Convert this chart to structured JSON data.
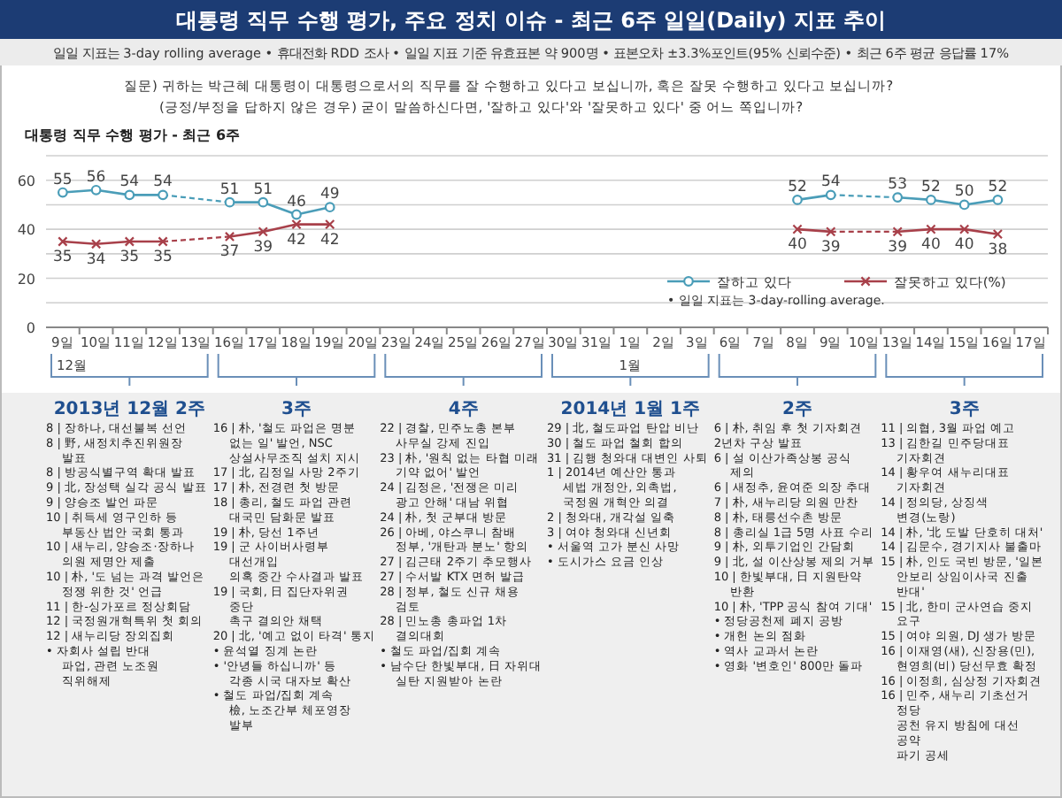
{
  "chart_data": {
    "type": "line",
    "title": "대통령 직무 수행 평가, 주요 정치 이슈 - 최근 6주 일일(Daily) 지표 추이",
    "subtitle": "일일 지표는 3-day rolling average • 휴대전화 RDD 조사 • 일일 지표 기준 유효표본 약 900명 • 표본오차 ±3.3%포인트(95% 신뢰수준) • 최근 6주 평균 응답률 17%",
    "categories": [
      "9일",
      "10일",
      "11일",
      "12일",
      "13일",
      "16일",
      "17일",
      "18일",
      "19일",
      "20일",
      "23일",
      "24일",
      "25일",
      "26일",
      "27일",
      "30일",
      "31일",
      "1일",
      "2일",
      "3일",
      "6일",
      "7일",
      "8일",
      "9일",
      "10일",
      "13일",
      "14일",
      "15일",
      "16일",
      "17일"
    ],
    "series": [
      {
        "name": "잘하고 있다",
        "color": "#4a9db8",
        "marker": "circle",
        "values": [
          55,
          56,
          54,
          54,
          null,
          51,
          51,
          46,
          49,
          null,
          null,
          null,
          null,
          null,
          null,
          null,
          null,
          null,
          null,
          null,
          null,
          null,
          52,
          54,
          null,
          53,
          52,
          50,
          52,
          null
        ]
      },
      {
        "name": "잘못하고 있다(%)",
        "color": "#a8404a",
        "marker": "cross",
        "values": [
          35,
          34,
          35,
          35,
          null,
          37,
          39,
          42,
          42,
          null,
          null,
          null,
          null,
          null,
          null,
          null,
          null,
          null,
          null,
          null,
          null,
          null,
          40,
          39,
          null,
          39,
          40,
          40,
          38,
          null
        ]
      }
    ],
    "ylim": [
      0,
      70
    ],
    "yticks": [
      0,
      {
        "value": 10,
        "label": null
      },
      20,
      {
        "value": 30,
        "label": null
      },
      40,
      {
        "value": 50,
        "label": null
      },
      60,
      {
        "value": 70,
        "label": null
      }
    ],
    "grid": "y",
    "legend": "bottom right",
    "data_labels": true,
    "line_style": "solid",
    "annotations": [
      "대통령 직무 수행 평가 - 최근 6주",
      "질문) 귀하는 박근혜 대통령이 대통령으로서의 직무를 잘 수행하고 있다고 보십니까, 혹은 잘못 수행하고 있다고 보십니까?",
      "(긍정/부정을 답하지 않은 경우) 굳이 말씀하신다면, '잘하고 있다'와 '잘못하고 있다' 중 어느 쪽입니까?",
      "• 일일 지표는 3-day-rolling average.",
      "12월",
      "1월",
      "2013년 12월 2주\n8 | 장하나, 대선불복 선언\n8 | 野, 새정치추진위원장 발표\n8 | 방공식별구역 확대 발표\n9 | 北, 장성택 실각 공식 발표\n9 | 양승조 발언 파문\n10 | 취득세 영구인하 등\n부동산 법안 국회 통과\n10 | 새누리, 양승조·장하나\n의원 제명안 제출\n10 | 朴, '도 넘는 과격 발언은\n정쟁 위한 것' 언급\n11 | 한-싱가포르 정상회담\n12 | 국정원개혁특위 첫 회의\n12 | 새누리당 장외집회\n• 자회사 설립 반대\n파업, 관련 노조원 직위해제",
      "3주\n16 | 朴, '철도 파업은 명분\n없는 일' 발언, NSC\n상설사무조직 설치 지시\n17 | 北, 김정일 사망 2주기\n17 | 朴, 전경련 첫 방문\n18 | 총리, 철도 파업 관련\n대국민 담화문 발표\n19 | 朴, 당선 1주년\n19 | 군 사이버사령부 대선개입\n의혹 중간 수사결과 발표\n19 | 국회, 日 집단자위권 중단\n촉구 결의안 채택\n20 | 北, '예고 없이 타격' 통지\n• 윤석열 징계 논란\n• '안녕들 하십니까' 등\n각종 시국 대자보 확산\n• 철도 파업/집회 계속\n檢, 노조간부 체포영장 발부",
      "4주\n22 | 경찰, 민주노총 본부\n사무실 강제 진입\n23 | 朴, '원칙 없는 타협 미래\n기약 없어' 발언\n24 | 김정은, '전쟁은 미리\n광고 안해' 대남 위협\n24 | 朴, 첫 군부대 방문\n26 | 아베, 야스쿠니 참배\n정부, '개탄과 분노' 항의\n27 | 김근태 2주기 추모행사\n27 | 수서발 KTX 면허 발급\n28 | 정부, 철도 신규 채용 검토\n28 | 민노총 총파업 1차 결의대회\n• 철도 파업/집회 계속\n• 남수단 한빛부대, 日 자위대\n실탄 지원받아 논란",
      "2014년 1월 1주\n29 | 北, 철도파업 탄압 비난\n30 | 철도 파업 철회 합의\n31 | 김행 청와대 대변인 사퇴\n1 | 2014년 예산안 통과\n세법 개정안, 외촉법,\n국정원 개혁안 의결\n2 | 청와대, 개각설 일축\n3 | 여야 청와대 신년회\n• 서울역 고가 분신 사망\n• 도시가스 요금 인상",
      "2주\n6 | 朴, 취임 후 첫 기자회견\n2년차 구상 발표\n6 | 설 이산가족상봉 공식 제의\n6 | 새정추, 윤여준 의장 추대\n7 | 朴, 새누리당 의원 만찬\n8 | 朴, 태릉선수촌 방문\n8 | 총리실 1급 5명 사표 수리\n9 | 朴, 외투기업인 간담회\n9 | 北, 설 이산상봉 제의 거부\n10 | 한빛부대, 日 지원탄약 반환\n10 | 朴, 'TPP 공식 참여 기대'\n• 정당공천제 폐지 공방\n• 개헌 논의 점화\n• 역사 교과서 논란\n• 영화 '변호인' 800만 돌파",
      "3주\n11 | 의협, 3월 파업 예고\n13 | 김한길 민주당대표 기자회견\n14 | 황우여 새누리대표 기자회견\n14 | 정의당, 상징색 변경(노랑)\n14 | 朴, '北 도발 단호히 대처'\n14 | 김문수, 경기지사 불출마\n15 | 朴, 인도 국빈 방문, '일본\n안보리 상임이사국 진출 반대'\n15 | 北, 한미 군사연습 중지 요구\n15 | 여야 의원, DJ 생가 방문\n16 | 이재영(새), 신장용(민),\n현영희(비) 당선무효 확정\n16 | 이정희, 심상정 기자회견\n16 | 민주, 새누리 기초선거 정당\n공천 유지 방침에 대선 공약\n파기 공세"
    ]
  }
}
